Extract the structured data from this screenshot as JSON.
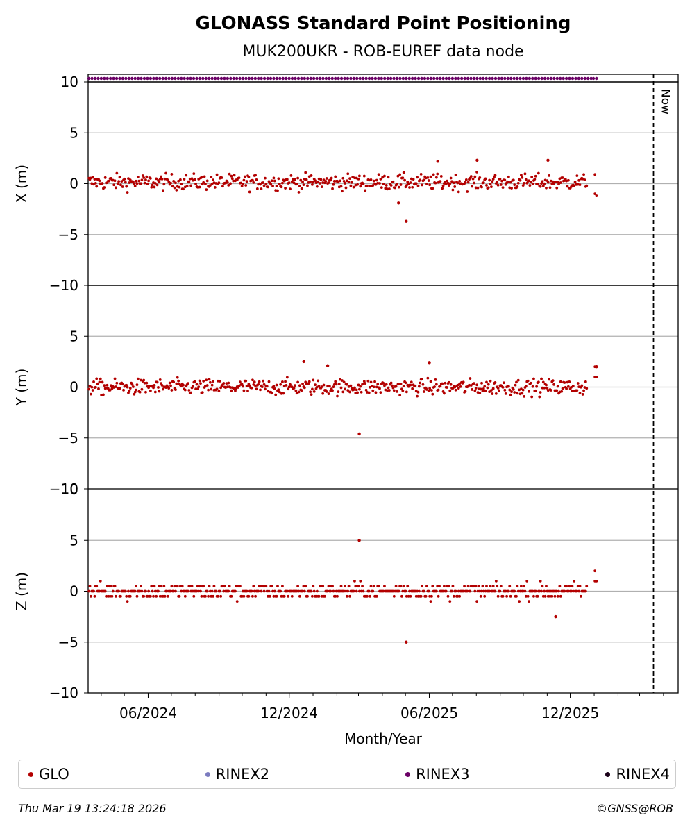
{
  "chart_data": {
    "type": "scatter",
    "title": "GLONASS Standard Point Positioning",
    "subtitle": "MUK200UKR - ROB-EUREF data node",
    "xlabel": "Month/Year",
    "x_ticks": [
      "06/2024",
      "12/2024",
      "06/2025",
      "12/2025"
    ],
    "x_range": [
      "2024-03-15",
      "2026-04-20"
    ],
    "now_label": "Now",
    "now_date": "2026-03-19",
    "data_end_date": "2026-01-04",
    "ylim": [
      -10,
      10
    ],
    "y_ticks": [
      "10",
      "5",
      "0",
      "−5",
      "−10"
    ],
    "grid": true,
    "panels": [
      {
        "name": "x-panel",
        "ylabel": "X (m)",
        "outliers": [
          {
            "x": "2025-05-02",
            "y": -3.7
          },
          {
            "x": "2025-04-22",
            "y": -1.9
          },
          {
            "x": "2025-08-02",
            "y": 2.3
          },
          {
            "x": "2025-06-12",
            "y": 2.2
          },
          {
            "x": "2025-11-02",
            "y": 2.3
          }
        ]
      },
      {
        "name": "y-panel",
        "ylabel": "Y (m)",
        "outliers": [
          {
            "x": "2025-03-02",
            "y": -4.6
          },
          {
            "x": "2024-12-20",
            "y": 2.5
          },
          {
            "x": "2025-01-20",
            "y": 2.1
          },
          {
            "x": "2025-06-01",
            "y": 2.4
          },
          {
            "x": "2026-01-04",
            "y": 2.0
          }
        ]
      },
      {
        "name": "z-panel",
        "ylabel": "Z (m)",
        "outliers": [
          {
            "x": "2025-03-02",
            "y": 5.0
          },
          {
            "x": "2025-05-02",
            "y": -5.0
          },
          {
            "x": "2025-11-12",
            "y": -2.5
          }
        ]
      }
    ],
    "series": [
      {
        "name": "GLO",
        "color": "#b30000"
      },
      {
        "name": "RINEX2",
        "color": "#7b7bbf"
      },
      {
        "name": "RINEX3",
        "color": "#6b0066"
      },
      {
        "name": "RINEX4",
        "color": "#1a0018"
      }
    ]
  },
  "footer": {
    "timestamp": "Thu Mar 19 13:24:18 2026",
    "copyright": "©GNSS@ROB"
  }
}
